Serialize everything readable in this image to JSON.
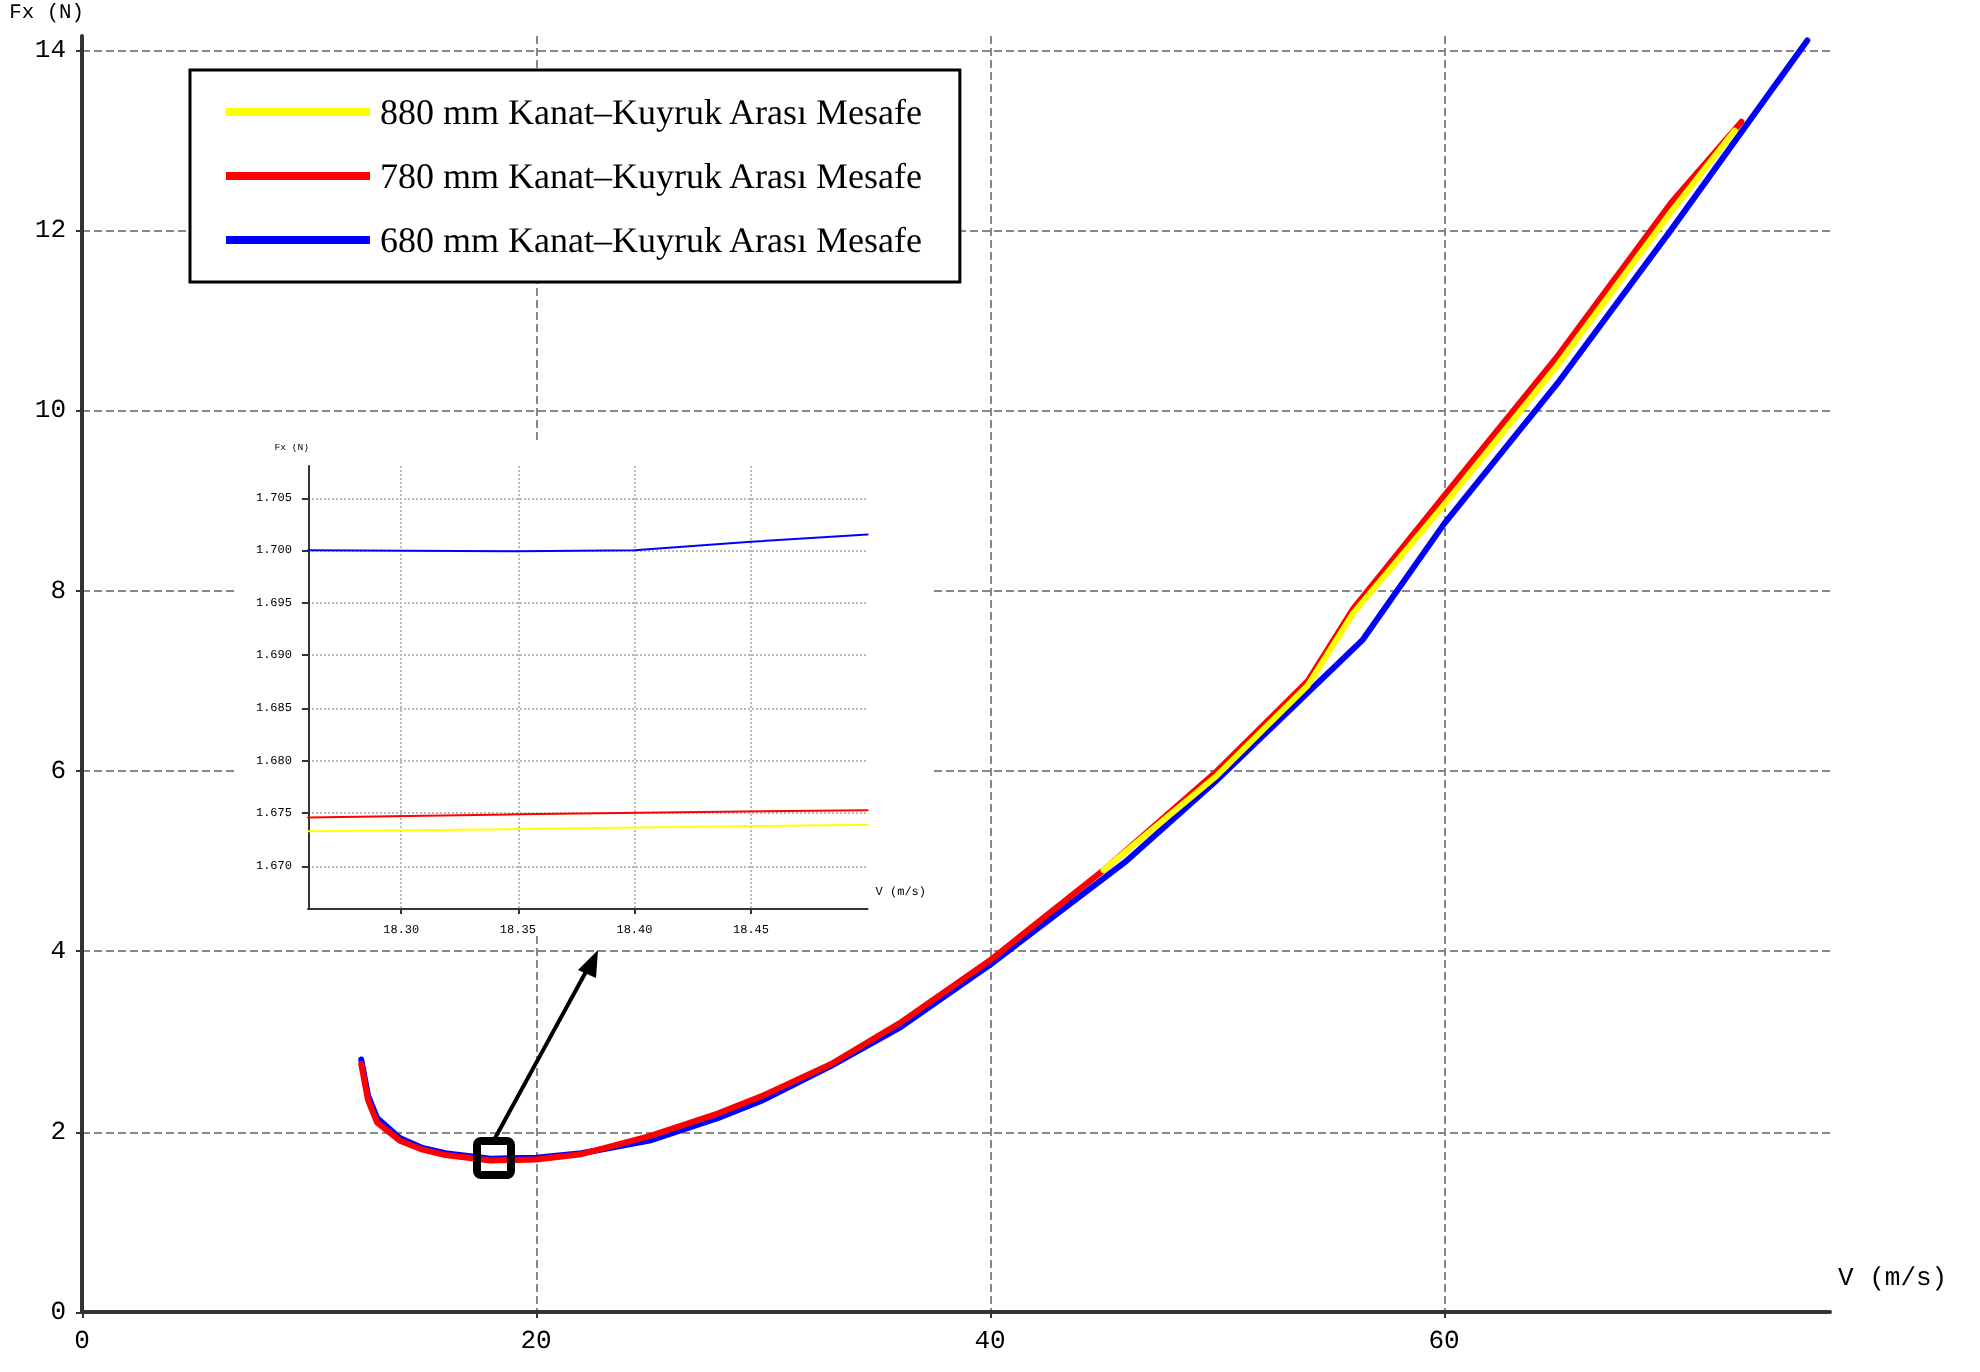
{
  "chart_data": [
    {
      "type": "line",
      "xlabel": "V (m/s)",
      "ylabel": "Fx (N)",
      "xlim": [
        0,
        77
      ],
      "ylim": [
        0,
        14.15
      ],
      "xticks": [
        0,
        20,
        40,
        60
      ],
      "yticks": [
        0,
        2,
        4,
        6,
        8,
        10,
        12,
        14
      ],
      "grid": true,
      "legend": "top left",
      "marker": "none",
      "line_style": "solid",
      "series": [
        {
          "name": "880 mm Kanat–Kuyruk Arası Mesafe",
          "color": "#ffff00",
          "x": [
            45,
            50,
            54,
            56,
            60,
            65,
            70,
            72.8
          ],
          "values": [
            4.9,
            5.95,
            6.95,
            7.75,
            8.95,
            10.5,
            12.2,
            13.1
          ]
        },
        {
          "name": "780 mm Kanat–Kuyruk Arası Mesafe",
          "color": "#ff0000",
          "x": [
            12.3,
            12.6,
            13,
            14,
            15,
            16,
            18,
            20,
            22,
            25,
            28,
            30,
            33,
            36,
            40,
            45,
            50,
            54,
            56,
            60,
            65,
            70,
            73.1
          ],
          "values": [
            2.75,
            2.35,
            2.1,
            1.9,
            1.8,
            1.74,
            1.68,
            1.69,
            1.75,
            1.95,
            2.2,
            2.4,
            2.75,
            3.2,
            3.9,
            4.9,
            6.0,
            7.0,
            7.8,
            9.05,
            10.6,
            12.3,
            13.2
          ]
        },
        {
          "name": "680 mm Kanat–Kuyruk Arası Mesafe",
          "color": "#0000ff",
          "x": [
            12.3,
            12.6,
            13,
            14,
            15,
            16,
            18,
            20,
            22,
            25,
            28,
            30,
            33,
            36,
            40,
            46,
            50,
            56.4,
            60,
            65,
            70,
            76
          ],
          "values": [
            2.8,
            2.4,
            2.15,
            1.93,
            1.82,
            1.76,
            1.7,
            1.71,
            1.76,
            1.9,
            2.15,
            2.35,
            2.73,
            3.15,
            3.85,
            5.0,
            5.9,
            7.45,
            8.74,
            10.3,
            12.0,
            14.1
          ]
        }
      ]
    },
    {
      "type": "line",
      "xlabel": "V (m/s)",
      "ylabel": "Fx (N)",
      "xlim": [
        18.26,
        18.5
      ],
      "ylim": [
        1.666,
        1.708
      ],
      "xticks": [
        {
          "value": 18.3,
          "label": "18.30"
        },
        {
          "value": 18.35,
          "label": "18.35"
        },
        {
          "value": 18.4,
          "label": "18.40"
        },
        {
          "value": 18.45,
          "label": "18.45"
        }
      ],
      "yticks": [
        {
          "value": 1.67,
          "label": "1.670"
        },
        {
          "value": 1.675,
          "label": "1.675"
        },
        {
          "value": 1.68,
          "label": "1.680"
        },
        {
          "value": 1.685,
          "label": "1.685"
        },
        {
          "value": 1.69,
          "label": "1.690"
        },
        {
          "value": 1.695,
          "label": "1.695"
        },
        {
          "value": 1.7,
          "label": "1.700"
        },
        {
          "value": 1.705,
          "label": "1.705"
        }
      ],
      "grid": true,
      "marker": "none",
      "line_style": "solid",
      "series": [
        {
          "color": "#ffff00",
          "x": [
            18.26,
            18.35,
            18.42,
            18.5
          ],
          "values": [
            1.6733,
            1.6735,
            1.6737,
            1.6739
          ]
        },
        {
          "color": "#ff0000",
          "x": [
            18.26,
            18.35,
            18.42,
            18.5
          ],
          "values": [
            1.6746,
            1.6749,
            1.6751,
            1.6753
          ]
        },
        {
          "color": "#0000ff",
          "x": [
            18.26,
            18.35,
            18.4,
            18.45,
            18.5
          ],
          "values": [
            1.7,
            1.6999,
            1.7,
            1.7008,
            1.7015
          ]
        }
      ]
    }
  ]
}
